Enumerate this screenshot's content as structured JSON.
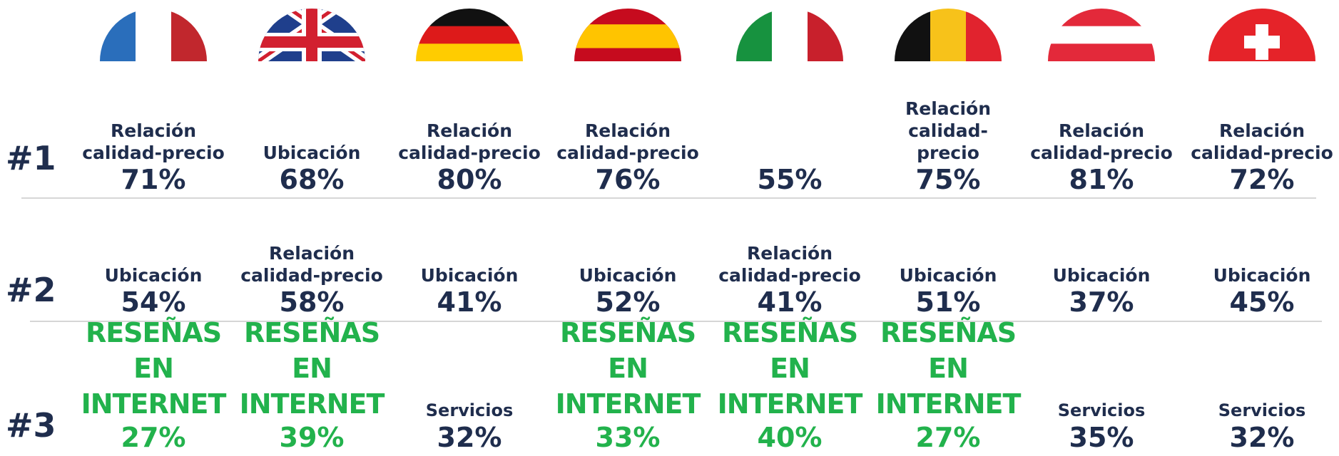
{
  "rows": [
    {
      "rank": "#1",
      "cells": [
        {
          "label": "Relación calidad-precio",
          "value": "71%"
        },
        {
          "label": "Ubicación",
          "value": "68%"
        },
        {
          "label": "Relación calidad-precio",
          "value": "80%"
        },
        {
          "label": "Relación calidad-precio",
          "value": "76%"
        },
        {
          "value": "55%"
        },
        {
          "label": "Relación calidad-precio",
          "value": "75%"
        },
        {
          "label": "Relación calidad-precio",
          "value": "81%"
        },
        {
          "label": "Relación calidad-precio",
          "value": "72%"
        }
      ]
    },
    {
      "rank": "#2",
      "cells": [
        {
          "label": "Ubicación",
          "value": "54%"
        },
        {
          "label": "Relación calidad-precio",
          "value": "58%"
        },
        {
          "label": "Ubicación",
          "value": "41%"
        },
        {
          "label": "Ubicación",
          "value": "52%"
        },
        {
          "label": "Relación calidad-precio",
          "value": "41%"
        },
        {
          "label": "Ubicación",
          "value": "51%"
        },
        {
          "label": "Ubicación",
          "value": "37%"
        },
        {
          "label": "Ubicación",
          "value": "45%"
        }
      ]
    },
    {
      "rank": "#3",
      "cells": [
        {
          "label": "RESEÑAS EN INTERNET",
          "value": "27%",
          "color": "#22b24c"
        },
        {
          "label": "RESEÑAS EN INTERNET",
          "value": "39%",
          "color": "#22b24c"
        },
        {
          "label": "Servicios",
          "value": "32%"
        },
        {
          "label": "RESEÑAS EN INTERNET",
          "value": "33%",
          "color": "#22b24c"
        },
        {
          "label": "RESEÑAS EN INTERNET",
          "value": "40%",
          "color": "#22b24c"
        },
        {
          "label": "RESEÑAS EN INTERNET",
          "value": "27%",
          "color": "#22b24c"
        },
        {
          "label": "Servicios",
          "value": "35%"
        },
        {
          "label": "Servicios",
          "value": "32%"
        }
      ]
    }
  ]
}
